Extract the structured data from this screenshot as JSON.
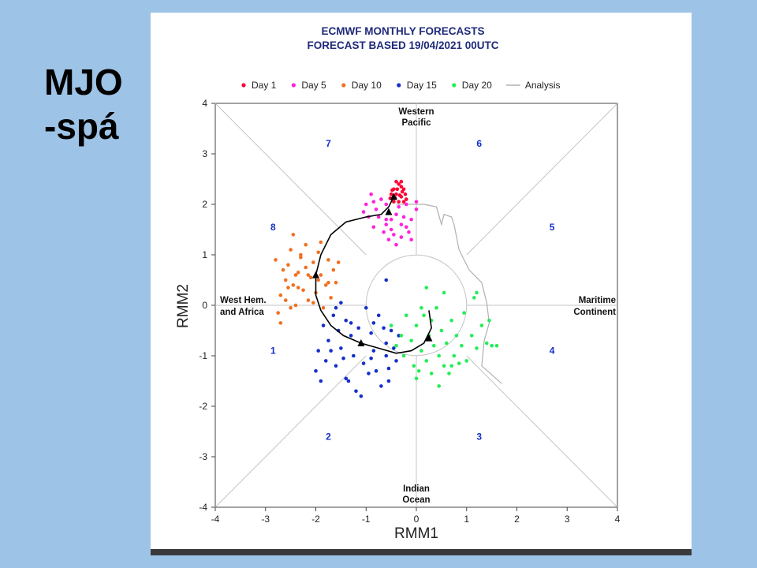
{
  "slide": {
    "title_line1": "MJO",
    "title_line2": "-spá"
  },
  "colors": {
    "background": "#9dc3e6",
    "title_text": "#1f2a7a",
    "phase_numbers": "#1530c8"
  },
  "chart_data": {
    "type": "scatter",
    "title": "ECMWF MONTHLY FORECASTS",
    "subtitle": "FORECAST  BASED 19/04/2021 00UTC",
    "xlabel": "RMM1",
    "ylabel": "RMM2",
    "xlim": [
      -4,
      4
    ],
    "ylim": [
      -4,
      4
    ],
    "xticks": [
      "-4",
      "-3",
      "-2",
      "-1",
      "0",
      "1",
      "2",
      "3",
      "4"
    ],
    "yticks": [
      "-4",
      "-3",
      "-2",
      "-1",
      "0",
      "1",
      "2",
      "3",
      "4"
    ],
    "legend_position": "top",
    "regions": {
      "top": [
        "Western",
        "Pacific"
      ],
      "bottom": [
        "Indian",
        "Ocean"
      ],
      "left": [
        "West Hem.",
        "and Africa"
      ],
      "right": [
        "Maritime",
        "Continent"
      ]
    },
    "phases": [
      {
        "label": "1",
        "x": -2.85,
        "y": -0.9
      },
      {
        "label": "2",
        "x": -1.75,
        "y": -2.6
      },
      {
        "label": "3",
        "x": 1.25,
        "y": -2.6
      },
      {
        "label": "4",
        "x": 2.7,
        "y": -0.9
      },
      {
        "label": "5",
        "x": 2.7,
        "y": 1.55
      },
      {
        "label": "6",
        "x": 1.25,
        "y": 3.2
      },
      {
        "label": "7",
        "x": -1.75,
        "y": 3.2
      },
      {
        "label": "8",
        "x": -2.85,
        "y": 1.55
      }
    ],
    "series": [
      {
        "name": "Day 1",
        "color": "#ff0033",
        "points": [
          [
            -0.45,
            2.3
          ],
          [
            -0.4,
            2.2
          ],
          [
            -0.35,
            2.4
          ],
          [
            -0.3,
            2.15
          ],
          [
            -0.25,
            2.3
          ],
          [
            -0.2,
            2.1
          ],
          [
            -0.5,
            2.2
          ],
          [
            -0.45,
            2.05
          ],
          [
            -0.35,
            2.05
          ],
          [
            -0.3,
            2.35
          ],
          [
            -0.4,
            2.45
          ],
          [
            -0.28,
            2.25
          ],
          [
            -0.52,
            2.12
          ],
          [
            -0.22,
            2.2
          ],
          [
            -0.38,
            2.3
          ],
          [
            -0.33,
            2.18
          ],
          [
            -0.48,
            2.28
          ],
          [
            -0.25,
            2.05
          ],
          [
            -0.42,
            2.12
          ],
          [
            -0.3,
            2.45
          ]
        ]
      },
      {
        "name": "Day 5",
        "color": "#ff22dd",
        "points": [
          [
            -1.0,
            2.0
          ],
          [
            -0.9,
            2.2
          ],
          [
            -0.8,
            1.9
          ],
          [
            -0.7,
            2.1
          ],
          [
            -0.6,
            1.7
          ],
          [
            -0.5,
            1.5
          ],
          [
            -0.4,
            1.8
          ],
          [
            -0.3,
            1.6
          ],
          [
            -0.2,
            2.0
          ],
          [
            -0.1,
            1.7
          ],
          [
            0.0,
            2.05
          ],
          [
            -1.05,
            1.85
          ],
          [
            -0.85,
            1.55
          ],
          [
            -0.65,
            1.45
          ],
          [
            -0.55,
            1.3
          ],
          [
            -0.45,
            1.4
          ],
          [
            -0.35,
            1.95
          ],
          [
            -0.25,
            1.75
          ],
          [
            -0.15,
            1.45
          ],
          [
            -0.75,
            1.75
          ],
          [
            -0.6,
            2.0
          ],
          [
            -0.95,
            1.75
          ],
          [
            -0.5,
            1.7
          ],
          [
            -0.3,
            1.35
          ],
          [
            -0.2,
            1.55
          ],
          [
            -0.85,
            2.05
          ],
          [
            -0.4,
            1.2
          ],
          [
            -0.1,
            1.3
          ],
          [
            -0.6,
            1.6
          ],
          [
            0.0,
            1.9
          ]
        ]
      },
      {
        "name": "Day 10",
        "color": "#f07020",
        "points": [
          [
            -2.75,
            -0.15
          ],
          [
            -2.7,
            0.2
          ],
          [
            -2.6,
            0.5
          ],
          [
            -2.55,
            0.8
          ],
          [
            -2.5,
            1.1
          ],
          [
            -2.45,
            0.4
          ],
          [
            -2.4,
            0.0
          ],
          [
            -2.35,
            0.65
          ],
          [
            -2.3,
            0.95
          ],
          [
            -2.25,
            0.3
          ],
          [
            -2.2,
            1.2
          ],
          [
            -2.15,
            0.1
          ],
          [
            -2.1,
            0.55
          ],
          [
            -2.05,
            0.85
          ],
          [
            -2.0,
            0.25
          ],
          [
            -1.95,
            1.05
          ],
          [
            -1.9,
            0.6
          ],
          [
            -1.85,
            -0.05
          ],
          [
            -1.8,
            0.4
          ],
          [
            -1.75,
            0.9
          ],
          [
            -1.7,
            0.15
          ],
          [
            -1.65,
            0.7
          ],
          [
            -1.6,
            0.45
          ],
          [
            -1.55,
            0.85
          ],
          [
            -2.65,
            0.7
          ],
          [
            -2.5,
            -0.05
          ],
          [
            -2.45,
            1.4
          ],
          [
            -2.35,
            0.35
          ],
          [
            -2.2,
            0.75
          ],
          [
            -2.05,
            0.05
          ],
          [
            -1.95,
            0.5
          ],
          [
            -2.8,
            0.9
          ],
          [
            -2.6,
            0.1
          ],
          [
            -2.3,
            1.0
          ],
          [
            -2.15,
            0.6
          ],
          [
            -1.75,
            0.45
          ],
          [
            -2.55,
            0.35
          ],
          [
            -2.4,
            0.6
          ],
          [
            -2.7,
            -0.35
          ],
          [
            -1.9,
            1.25
          ]
        ]
      },
      {
        "name": "Day 15",
        "color": "#1530c8",
        "points": [
          [
            -2.0,
            -1.3
          ],
          [
            -1.9,
            -1.5
          ],
          [
            -1.85,
            -0.4
          ],
          [
            -1.8,
            -1.1
          ],
          [
            -1.75,
            -0.7
          ],
          [
            -1.7,
            -0.9
          ],
          [
            -1.65,
            -0.2
          ],
          [
            -1.6,
            -1.2
          ],
          [
            -1.55,
            -0.5
          ],
          [
            -1.5,
            -0.85
          ],
          [
            -1.45,
            -1.05
          ],
          [
            -1.4,
            -0.3
          ],
          [
            -1.35,
            -1.5
          ],
          [
            -1.3,
            -0.6
          ],
          [
            -1.25,
            -1.0
          ],
          [
            -1.2,
            -1.7
          ],
          [
            -1.15,
            -0.45
          ],
          [
            -1.1,
            -0.75
          ],
          [
            -1.05,
            -1.15
          ],
          [
            -1.0,
            -0.05
          ],
          [
            -0.95,
            -1.35
          ],
          [
            -0.9,
            -0.55
          ],
          [
            -0.85,
            -0.9
          ],
          [
            -0.8,
            -1.3
          ],
          [
            -0.75,
            -0.2
          ],
          [
            -0.7,
            -1.6
          ],
          [
            -0.65,
            -0.45
          ],
          [
            -0.6,
            -1.0
          ],
          [
            -0.55,
            -1.25
          ],
          [
            -0.5,
            -0.5
          ],
          [
            -0.45,
            -0.85
          ],
          [
            -0.4,
            -1.1
          ],
          [
            -0.35,
            -0.6
          ],
          [
            -0.6,
            0.5
          ],
          [
            -0.55,
            -1.5
          ],
          [
            -0.9,
            -1.05
          ],
          [
            -1.3,
            -0.35
          ],
          [
            -1.5,
            0.05
          ],
          [
            -1.95,
            -0.9
          ],
          [
            -1.6,
            -0.05
          ],
          [
            -1.1,
            -1.8
          ],
          [
            -0.85,
            -0.35
          ],
          [
            -1.4,
            -1.45
          ],
          [
            -0.6,
            -0.75
          ]
        ]
      },
      {
        "name": "Day 20",
        "color": "#22ee55",
        "points": [
          [
            -0.5,
            -0.4
          ],
          [
            -0.4,
            -0.8
          ],
          [
            -0.3,
            -0.6
          ],
          [
            -0.25,
            -1.0
          ],
          [
            -0.2,
            -0.2
          ],
          [
            -0.1,
            -0.7
          ],
          [
            -0.05,
            -1.2
          ],
          [
            0.0,
            -0.4
          ],
          [
            0.05,
            -1.3
          ],
          [
            0.1,
            -0.9
          ],
          [
            0.15,
            -0.2
          ],
          [
            0.2,
            -1.1
          ],
          [
            0.25,
            -0.6
          ],
          [
            0.3,
            -1.35
          ],
          [
            0.35,
            -0.8
          ],
          [
            0.4,
            -0.05
          ],
          [
            0.45,
            -1.0
          ],
          [
            0.5,
            -0.5
          ],
          [
            0.55,
            -1.2
          ],
          [
            0.6,
            -0.75
          ],
          [
            0.65,
            -1.35
          ],
          [
            0.7,
            -0.3
          ],
          [
            0.75,
            -1.0
          ],
          [
            0.8,
            -0.6
          ],
          [
            0.85,
            -1.15
          ],
          [
            0.9,
            -0.8
          ],
          [
            0.95,
            -0.15
          ],
          [
            1.0,
            -1.1
          ],
          [
            1.1,
            -0.6
          ],
          [
            1.2,
            -0.85
          ],
          [
            1.3,
            -0.4
          ],
          [
            1.4,
            -0.75
          ],
          [
            1.45,
            -0.3
          ],
          [
            1.5,
            -0.8
          ],
          [
            1.6,
            -0.8
          ],
          [
            1.15,
            0.15
          ],
          [
            0.55,
            0.25
          ],
          [
            0.2,
            0.35
          ],
          [
            0.1,
            -0.05
          ],
          [
            0.3,
            -0.3
          ],
          [
            0.45,
            -1.6
          ],
          [
            0.0,
            -1.45
          ],
          [
            0.7,
            -1.2
          ],
          [
            1.2,
            0.25
          ]
        ]
      }
    ],
    "legend_line": {
      "name": "Analysis",
      "color": "#b0b0b0"
    },
    "analysis_path": [
      [
        1.7,
        -1.55
      ],
      [
        1.3,
        -1.2
      ],
      [
        1.35,
        -0.7
      ],
      [
        1.45,
        -0.35
      ],
      [
        1.4,
        0.05
      ],
      [
        1.3,
        0.45
      ],
      [
        1.05,
        0.7
      ],
      [
        0.85,
        1.1
      ],
      [
        0.75,
        1.6
      ],
      [
        0.7,
        1.75
      ],
      [
        0.55,
        1.8
      ],
      [
        0.5,
        1.6
      ],
      [
        0.4,
        1.95
      ],
      [
        0.15,
        2.0
      ],
      [
        -0.15,
        2.0
      ],
      [
        -0.4,
        2.0
      ]
    ],
    "ensemble_mean": {
      "color": "#000000",
      "path": [
        [
          0.25,
          -0.1
        ],
        [
          0.3,
          -0.45
        ],
        [
          0.15,
          -0.75
        ],
        [
          -0.1,
          -0.9
        ],
        [
          -0.4,
          -0.95
        ],
        [
          -0.75,
          -0.85
        ],
        [
          -1.1,
          -0.75
        ],
        [
          -1.45,
          -0.6
        ],
        [
          -1.7,
          -0.4
        ],
        [
          -1.9,
          -0.1
        ],
        [
          -2.0,
          0.2
        ],
        [
          -2.0,
          0.6
        ],
        [
          -1.9,
          1.0
        ],
        [
          -1.7,
          1.4
        ],
        [
          -1.4,
          1.65
        ],
        [
          -1.0,
          1.75
        ],
        [
          -0.7,
          1.8
        ],
        [
          -0.55,
          1.95
        ],
        [
          -0.45,
          2.15
        ]
      ],
      "markers": [
        [
          0.25,
          -0.65
        ],
        [
          -1.1,
          -0.75
        ],
        [
          -2.0,
          0.6
        ],
        [
          -0.55,
          1.85
        ],
        [
          -0.45,
          2.15
        ]
      ]
    }
  }
}
